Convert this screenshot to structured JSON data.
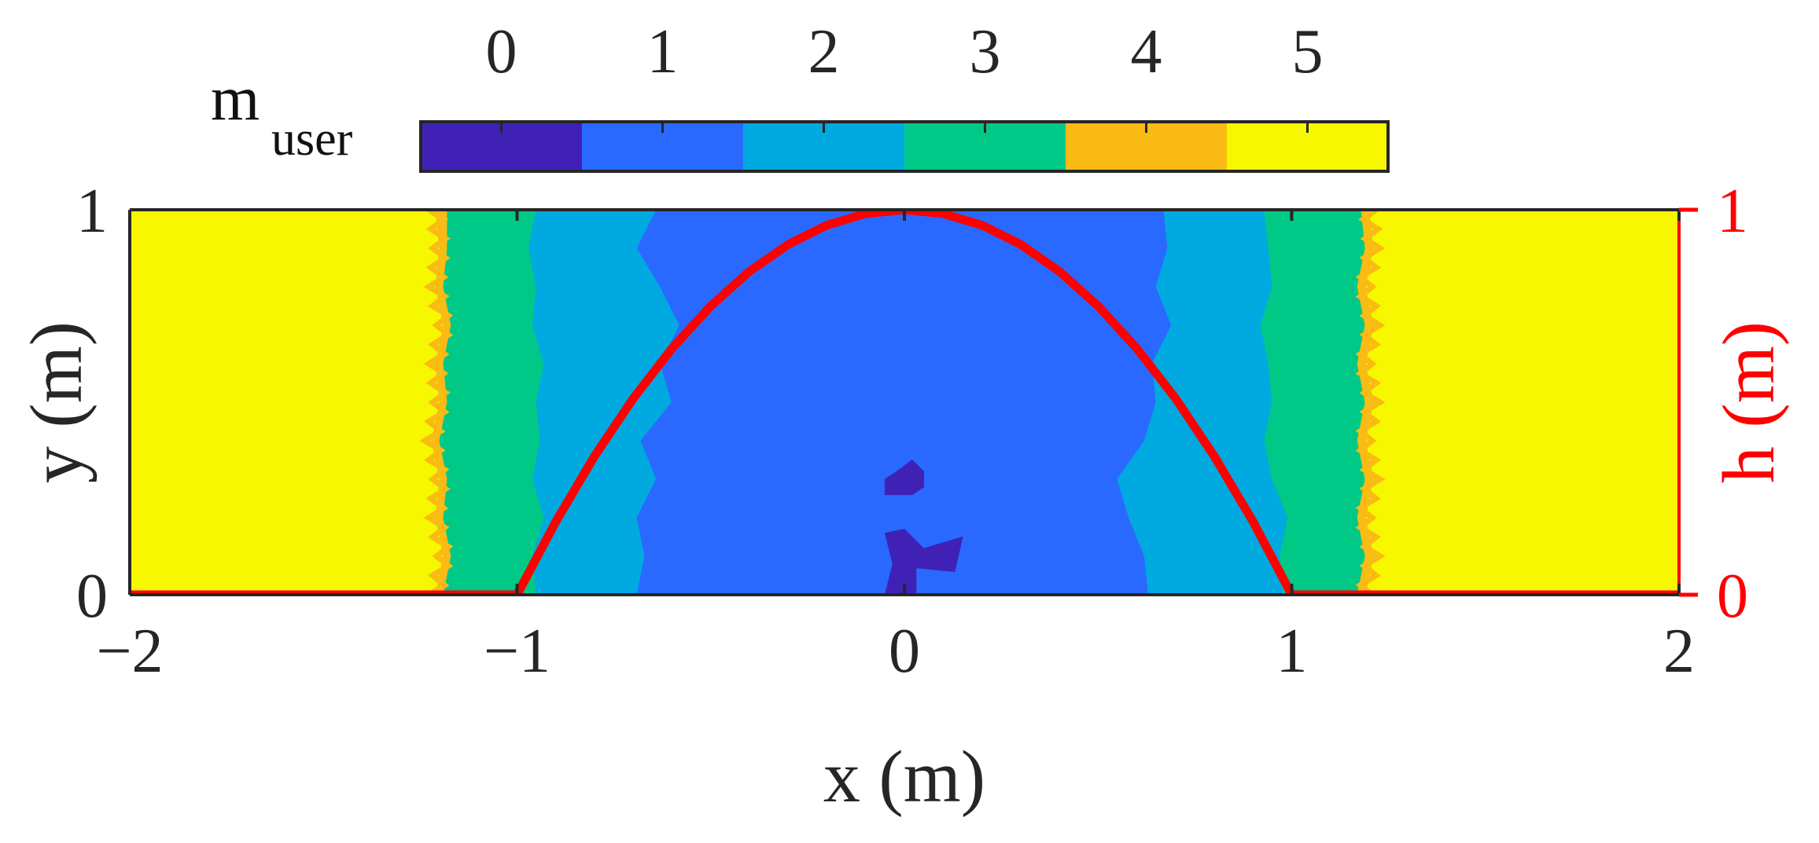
{
  "chart_data": {
    "type": "heatmap",
    "title": "",
    "xlabel": "x (m)",
    "ylabel": "y (m)",
    "y2label": "h (m)",
    "xlim": [
      -2,
      2
    ],
    "ylim": [
      0,
      1
    ],
    "y2lim": [
      0,
      1
    ],
    "xticks": [
      -2,
      -1,
      0,
      1,
      2
    ],
    "xtick_labels": [
      "−2",
      "−1",
      "0",
      "1",
      "2"
    ],
    "yticks": [
      0,
      1
    ],
    "ytick_labels": [
      "0",
      "1"
    ],
    "y2ticks": [
      0,
      1
    ],
    "y2tick_labels": [
      "0",
      "1"
    ],
    "colorbar": {
      "label_main": "m",
      "label_sub": "user",
      "placement": "top",
      "levels": [
        0,
        1,
        2,
        3,
        4,
        5
      ],
      "level_labels": [
        "0",
        "1",
        "2",
        "3",
        "4",
        "5"
      ],
      "colors": [
        "#3f22b5",
        "#2a69ff",
        "#00a9e0",
        "#00c987",
        "#f9bb14",
        "#f7f700"
      ]
    },
    "regions_by_row": {
      "y": [
        0.0,
        0.1,
        0.2,
        0.3,
        0.4,
        0.5,
        0.6,
        0.7,
        0.8,
        0.9,
        1.0
      ],
      "band_edges": {
        "5_to_4_left": [
          -1.21,
          -1.19,
          -1.21,
          -1.2,
          -1.22,
          -1.2,
          -1.21,
          -1.19,
          -1.21,
          -1.2,
          -1.21
        ],
        "4_to_3_left": [
          -1.19,
          -1.17,
          -1.19,
          -1.18,
          -1.2,
          -1.18,
          -1.19,
          -1.17,
          -1.19,
          -1.18,
          -1.18
        ],
        "3_to_2_left": [
          -0.95,
          -0.96,
          -0.93,
          -0.96,
          -0.94,
          -0.95,
          -0.93,
          -0.96,
          -0.95,
          -0.97,
          -0.95
        ],
        "2_to_1_left": [
          -0.69,
          -0.67,
          -0.69,
          -0.64,
          -0.68,
          -0.6,
          -0.63,
          -0.58,
          -0.63,
          -0.69,
          -0.64
        ],
        "2_to_1_right": [
          0.63,
          0.62,
          0.58,
          0.55,
          0.62,
          0.65,
          0.64,
          0.69,
          0.65,
          0.68,
          0.67
        ],
        "3_to_2_right": [
          0.98,
          0.97,
          0.99,
          0.95,
          0.93,
          0.95,
          0.94,
          0.92,
          0.95,
          0.94,
          0.93
        ],
        "4_to_3_right": [
          1.17,
          1.19,
          1.17,
          1.19,
          1.17,
          1.19,
          1.17,
          1.19,
          1.17,
          1.19,
          1.18
        ],
        "5_to_4_right": [
          1.19,
          1.21,
          1.19,
          1.21,
          1.19,
          1.21,
          1.19,
          1.21,
          1.19,
          1.21,
          1.2
        ]
      }
    },
    "islands": [
      {
        "level": 0,
        "polygon": [
          [
            -0.05,
            0.0
          ],
          [
            -0.03,
            0.08
          ],
          [
            -0.05,
            0.16
          ],
          [
            0.0,
            0.17
          ],
          [
            0.05,
            0.12
          ],
          [
            0.15,
            0.15
          ],
          [
            0.13,
            0.06
          ],
          [
            0.03,
            0.07
          ],
          [
            0.03,
            0.0
          ]
        ]
      },
      {
        "level": 0,
        "polygon": [
          [
            -0.05,
            0.26
          ],
          [
            0.02,
            0.26
          ],
          [
            0.05,
            0.28
          ],
          [
            0.05,
            0.32
          ],
          [
            0.02,
            0.35
          ],
          [
            -0.02,
            0.32
          ],
          [
            -0.05,
            0.3
          ]
        ]
      }
    ],
    "series": [
      {
        "axis": "y2",
        "color": "#ff0000",
        "x": [
          -2,
          -1.0,
          -0.9,
          -0.8,
          -0.7,
          -0.6,
          -0.5,
          -0.4,
          -0.3,
          -0.2,
          -0.1,
          0.0,
          0.1,
          0.2,
          0.3,
          0.4,
          0.5,
          0.6,
          0.7,
          0.8,
          0.9,
          1.0,
          2
        ],
        "y": [
          0,
          0,
          0.19,
          0.36,
          0.51,
          0.64,
          0.75,
          0.84,
          0.91,
          0.96,
          0.99,
          1.0,
          0.99,
          0.96,
          0.91,
          0.84,
          0.75,
          0.64,
          0.51,
          0.36,
          0.19,
          0,
          0
        ]
      }
    ]
  }
}
